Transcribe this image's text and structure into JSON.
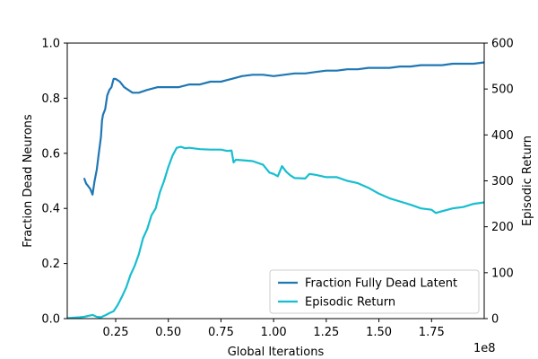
{
  "chart_data": {
    "type": "line",
    "xlabel": "Global Iterations",
    "x_multiplier_label": "1e8",
    "xlim": [
      0.02,
      2.0
    ],
    "x_ticks": [
      0.25,
      0.5,
      0.75,
      1.0,
      1.25,
      1.5,
      1.75
    ],
    "x_tick_labels": [
      "0.25",
      "0.50",
      "0.75",
      "1.00",
      "1.25",
      "1.50",
      "1.75"
    ],
    "left_axis": {
      "label": "Fraction Dead Neurons",
      "ylim": [
        0.0,
        1.0
      ],
      "ticks": [
        0.0,
        0.2,
        0.4,
        0.6,
        0.8,
        1.0
      ],
      "tick_labels": [
        "0.0",
        "0.2",
        "0.4",
        "0.6",
        "0.8",
        "1.0"
      ]
    },
    "right_axis": {
      "label": "Episodic Return",
      "ylim": [
        0,
        600
      ],
      "ticks": [
        0,
        100,
        200,
        300,
        400,
        500,
        600
      ],
      "tick_labels": [
        "0",
        "100",
        "200",
        "300",
        "400",
        "500",
        "600"
      ]
    },
    "legend_position": "bottom-right",
    "series": [
      {
        "name": "Fraction Fully Dead Latent",
        "axis": "left",
        "color": "#1f77b4",
        "points": [
          [
            0.1,
            0.51
          ],
          [
            0.11,
            0.49
          ],
          [
            0.12,
            0.48
          ],
          [
            0.13,
            0.47
          ],
          [
            0.135,
            0.46
          ],
          [
            0.14,
            0.45
          ],
          [
            0.15,
            0.5
          ],
          [
            0.16,
            0.54
          ],
          [
            0.17,
            0.6
          ],
          [
            0.18,
            0.66
          ],
          [
            0.185,
            0.72
          ],
          [
            0.19,
            0.74
          ],
          [
            0.2,
            0.76
          ],
          [
            0.21,
            0.81
          ],
          [
            0.22,
            0.83
          ],
          [
            0.23,
            0.84
          ],
          [
            0.24,
            0.87
          ],
          [
            0.25,
            0.87
          ],
          [
            0.27,
            0.86
          ],
          [
            0.29,
            0.84
          ],
          [
            0.31,
            0.83
          ],
          [
            0.33,
            0.82
          ],
          [
            0.36,
            0.82
          ],
          [
            0.4,
            0.83
          ],
          [
            0.45,
            0.84
          ],
          [
            0.5,
            0.84
          ],
          [
            0.55,
            0.84
          ],
          [
            0.6,
            0.85
          ],
          [
            0.65,
            0.85
          ],
          [
            0.7,
            0.86
          ],
          [
            0.75,
            0.86
          ],
          [
            0.8,
            0.87
          ],
          [
            0.85,
            0.88
          ],
          [
            0.9,
            0.885
          ],
          [
            0.95,
            0.885
          ],
          [
            1.0,
            0.88
          ],
          [
            1.05,
            0.885
          ],
          [
            1.1,
            0.89
          ],
          [
            1.15,
            0.89
          ],
          [
            1.2,
            0.895
          ],
          [
            1.25,
            0.9
          ],
          [
            1.3,
            0.9
          ],
          [
            1.35,
            0.905
          ],
          [
            1.4,
            0.905
          ],
          [
            1.45,
            0.91
          ],
          [
            1.5,
            0.91
          ],
          [
            1.55,
            0.91
          ],
          [
            1.6,
            0.915
          ],
          [
            1.65,
            0.915
          ],
          [
            1.7,
            0.92
          ],
          [
            1.75,
            0.92
          ],
          [
            1.8,
            0.92
          ],
          [
            1.85,
            0.925
          ],
          [
            1.9,
            0.925
          ],
          [
            1.95,
            0.925
          ],
          [
            2.0,
            0.93
          ]
        ]
      },
      {
        "name": "Episodic Return",
        "axis": "right",
        "color": "#17becf",
        "points": [
          [
            0.02,
            1
          ],
          [
            0.05,
            2
          ],
          [
            0.08,
            3
          ],
          [
            0.1,
            4
          ],
          [
            0.12,
            6
          ],
          [
            0.14,
            8
          ],
          [
            0.15,
            6
          ],
          [
            0.16,
            4
          ],
          [
            0.18,
            3
          ],
          [
            0.19,
            5
          ],
          [
            0.2,
            7
          ],
          [
            0.22,
            12
          ],
          [
            0.24,
            16
          ],
          [
            0.26,
            30
          ],
          [
            0.28,
            48
          ],
          [
            0.3,
            68
          ],
          [
            0.32,
            95
          ],
          [
            0.34,
            115
          ],
          [
            0.36,
            140
          ],
          [
            0.38,
            175
          ],
          [
            0.4,
            195
          ],
          [
            0.42,
            225
          ],
          [
            0.44,
            240
          ],
          [
            0.46,
            275
          ],
          [
            0.48,
            300
          ],
          [
            0.5,
            330
          ],
          [
            0.52,
            355
          ],
          [
            0.54,
            372
          ],
          [
            0.56,
            374
          ],
          [
            0.58,
            371
          ],
          [
            0.6,
            372
          ],
          [
            0.65,
            369
          ],
          [
            0.7,
            368
          ],
          [
            0.75,
            368
          ],
          [
            0.78,
            365
          ],
          [
            0.8,
            366
          ],
          [
            0.81,
            340
          ],
          [
            0.82,
            346
          ],
          [
            0.85,
            345
          ],
          [
            0.9,
            343
          ],
          [
            0.95,
            335
          ],
          [
            0.98,
            318
          ],
          [
            1.0,
            315
          ],
          [
            1.02,
            310
          ],
          [
            1.04,
            332
          ],
          [
            1.06,
            320
          ],
          [
            1.08,
            312
          ],
          [
            1.1,
            306
          ],
          [
            1.15,
            305
          ],
          [
            1.17,
            315
          ],
          [
            1.2,
            313
          ],
          [
            1.25,
            308
          ],
          [
            1.3,
            308
          ],
          [
            1.35,
            300
          ],
          [
            1.4,
            295
          ],
          [
            1.45,
            285
          ],
          [
            1.5,
            272
          ],
          [
            1.55,
            262
          ],
          [
            1.6,
            255
          ],
          [
            1.65,
            248
          ],
          [
            1.7,
            240
          ],
          [
            1.75,
            237
          ],
          [
            1.77,
            230
          ],
          [
            1.8,
            234
          ],
          [
            1.85,
            240
          ],
          [
            1.9,
            243
          ],
          [
            1.95,
            250
          ],
          [
            2.0,
            253
          ]
        ]
      }
    ]
  }
}
